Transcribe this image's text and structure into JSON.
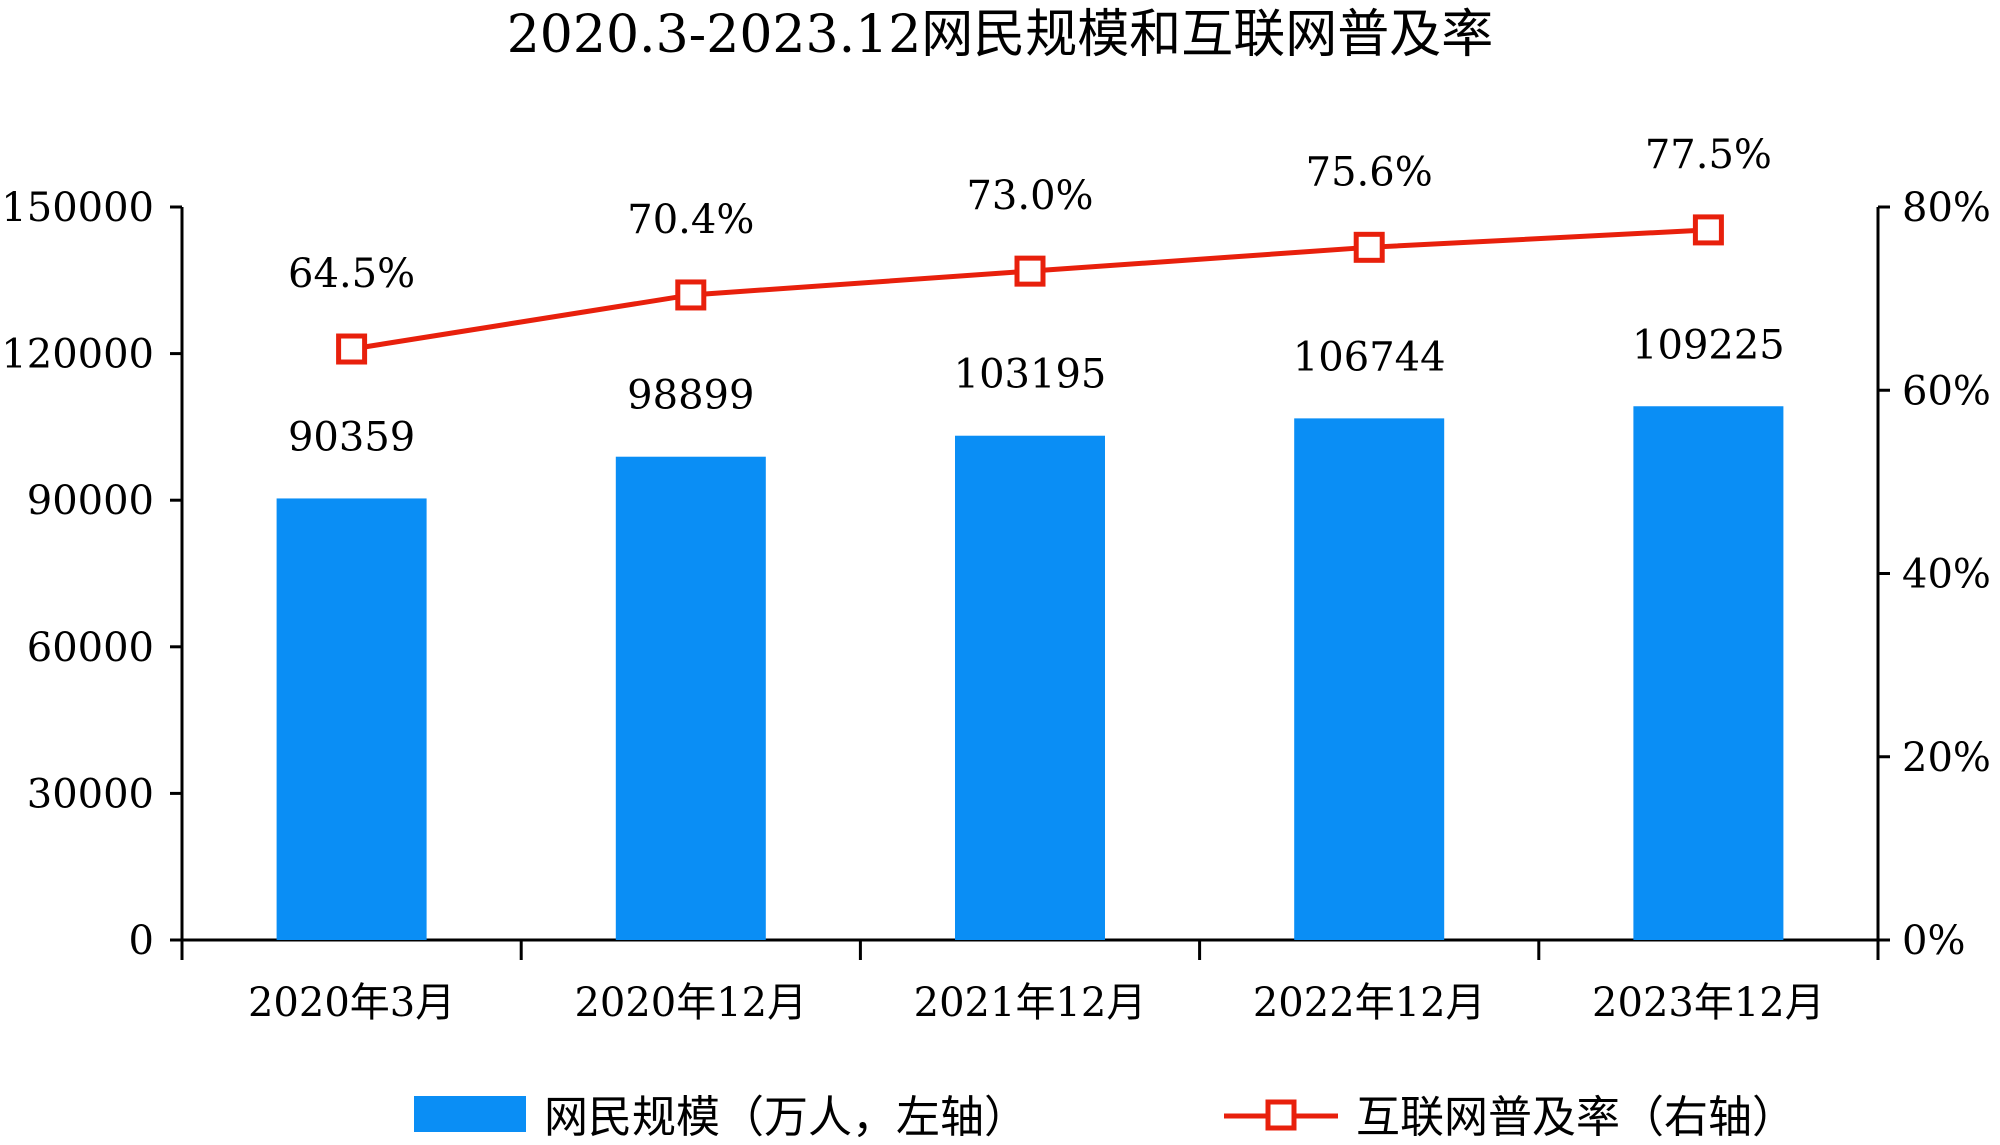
{
  "chart_data": {
    "type": "bar",
    "title": "2020.3-2023.12网民规模和互联网普及率",
    "categories": [
      "2020年3月",
      "2020年12月",
      "2021年12月",
      "2022年12月",
      "2023年12月"
    ],
    "series": [
      {
        "name": "网民规模（万人，左轴）",
        "type": "bar",
        "axis": "left",
        "values": [
          90359,
          98899,
          103195,
          106744,
          109225
        ],
        "labels": [
          "90359",
          "98899",
          "103195",
          "106744",
          "109225"
        ],
        "color": "#0a8ef5"
      },
      {
        "name": "互联网普及率（右轴）",
        "type": "line",
        "axis": "right",
        "values": [
          64.5,
          70.4,
          73.0,
          75.6,
          77.5
        ],
        "labels": [
          "64.5%",
          "70.4%",
          "73.0%",
          "75.6%",
          "77.5%"
        ],
        "color": "#e8200c",
        "marker": "square-open"
      }
    ],
    "y_left": {
      "ylim": [
        0,
        150000
      ],
      "ticks": [
        0,
        30000,
        60000,
        90000,
        120000,
        150000
      ],
      "tick_labels": [
        "0",
        "30000",
        "60000",
        "90000",
        "120000",
        "150000"
      ]
    },
    "y_right": {
      "ylim": [
        0,
        80
      ],
      "ticks": [
        0,
        20,
        40,
        60,
        80
      ],
      "tick_labels": [
        "0%",
        "20%",
        "40%",
        "60%",
        "80%"
      ]
    },
    "grid": false,
    "legend_position": "bottom"
  }
}
